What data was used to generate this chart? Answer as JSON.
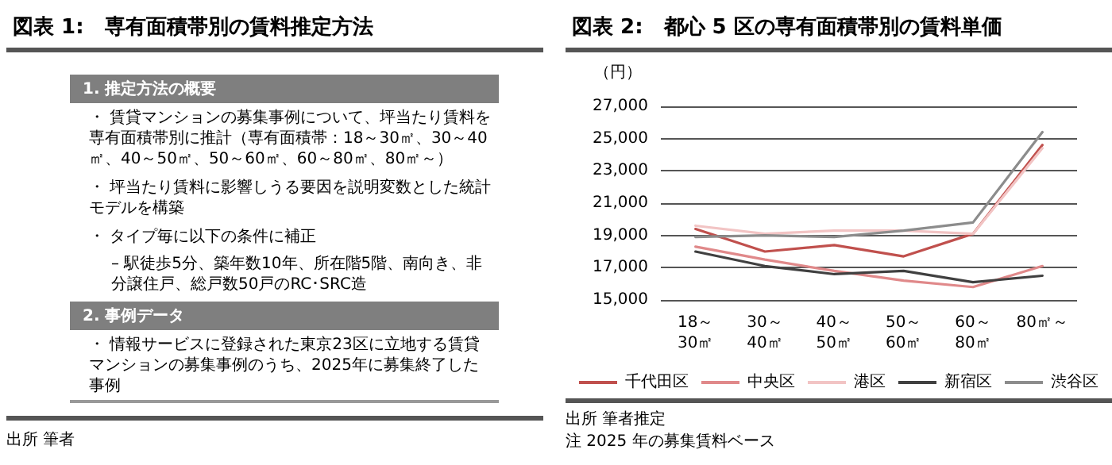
{
  "chart_data": [
    {
      "type": "other",
      "title": "図表 1:　専有面積帯別の賃料推定方法",
      "annotations": [
        "1. 推定方法の概要",
        "・ 賃貸マンションの募集事例について、坪当たり賃料を専有面積帯別に推計（専有面積帯：18～30㎡、30～40㎡、40～50㎡、50～60㎡、60～80㎡、80㎡～）",
        "・ 坪当たり賃料に影響しうる要因を説明変数とした統計モデルを構築",
        "・ タイプ毎に以下の条件に補正",
        "– 駅徒歩5分、築年数10年、所在階5階、南向き、非分譲住戸、総戸数50戸のRC･SRC造",
        "2. 事例データ",
        "・ 情報サービスに登録された東京23区に立地する賃貸マンションの募集事例のうち、2025年に募集終了した事例",
        "出所 筆者"
      ]
    },
    {
      "type": "line",
      "title": "図表 2:　都心 5 区の専有面積帯別の賃料単価",
      "ylabel": "（円）",
      "categories": [
        "18～\n30㎡",
        "30～\n40㎡",
        "40～\n50㎡",
        "50～\n60㎡",
        "60～\n80㎡",
        "80㎡～"
      ],
      "series": [
        {
          "name": "千代田区",
          "color": "#c0504d",
          "values": [
            19400,
            18000,
            18400,
            17700,
            19100,
            24600
          ]
        },
        {
          "name": "中央区",
          "color": "#e0898a",
          "values": [
            18300,
            17500,
            16800,
            16200,
            15800,
            17100
          ]
        },
        {
          "name": "港区",
          "color": "#f2c4c4",
          "values": [
            19600,
            19100,
            19300,
            19300,
            19100,
            24400
          ]
        },
        {
          "name": "新宿区",
          "color": "#404040",
          "values": [
            18000,
            17100,
            16600,
            16800,
            16100,
            16500
          ]
        },
        {
          "name": "渋谷区",
          "color": "#8c8c8c",
          "values": [
            18900,
            19000,
            18900,
            19300,
            19800,
            25400
          ]
        }
      ],
      "ylim": [
        15000,
        27000
      ],
      "yticks": [
        {
          "value": 15000,
          "label": "15,000"
        },
        {
          "value": 17000,
          "label": "17,000"
        },
        {
          "value": 19000,
          "label": "19,000"
        },
        {
          "value": 21000,
          "label": "21,000"
        },
        {
          "value": 23000,
          "label": "23,000"
        },
        {
          "value": 25000,
          "label": "25,000"
        },
        {
          "value": 27000,
          "label": "27,000"
        }
      ],
      "grid": "y",
      "legend": "bottom",
      "marker": "none",
      "line_style": "solid",
      "annotations": [
        "出所 筆者推定",
        "注 2025 年の募集賃料ベース"
      ]
    }
  ]
}
